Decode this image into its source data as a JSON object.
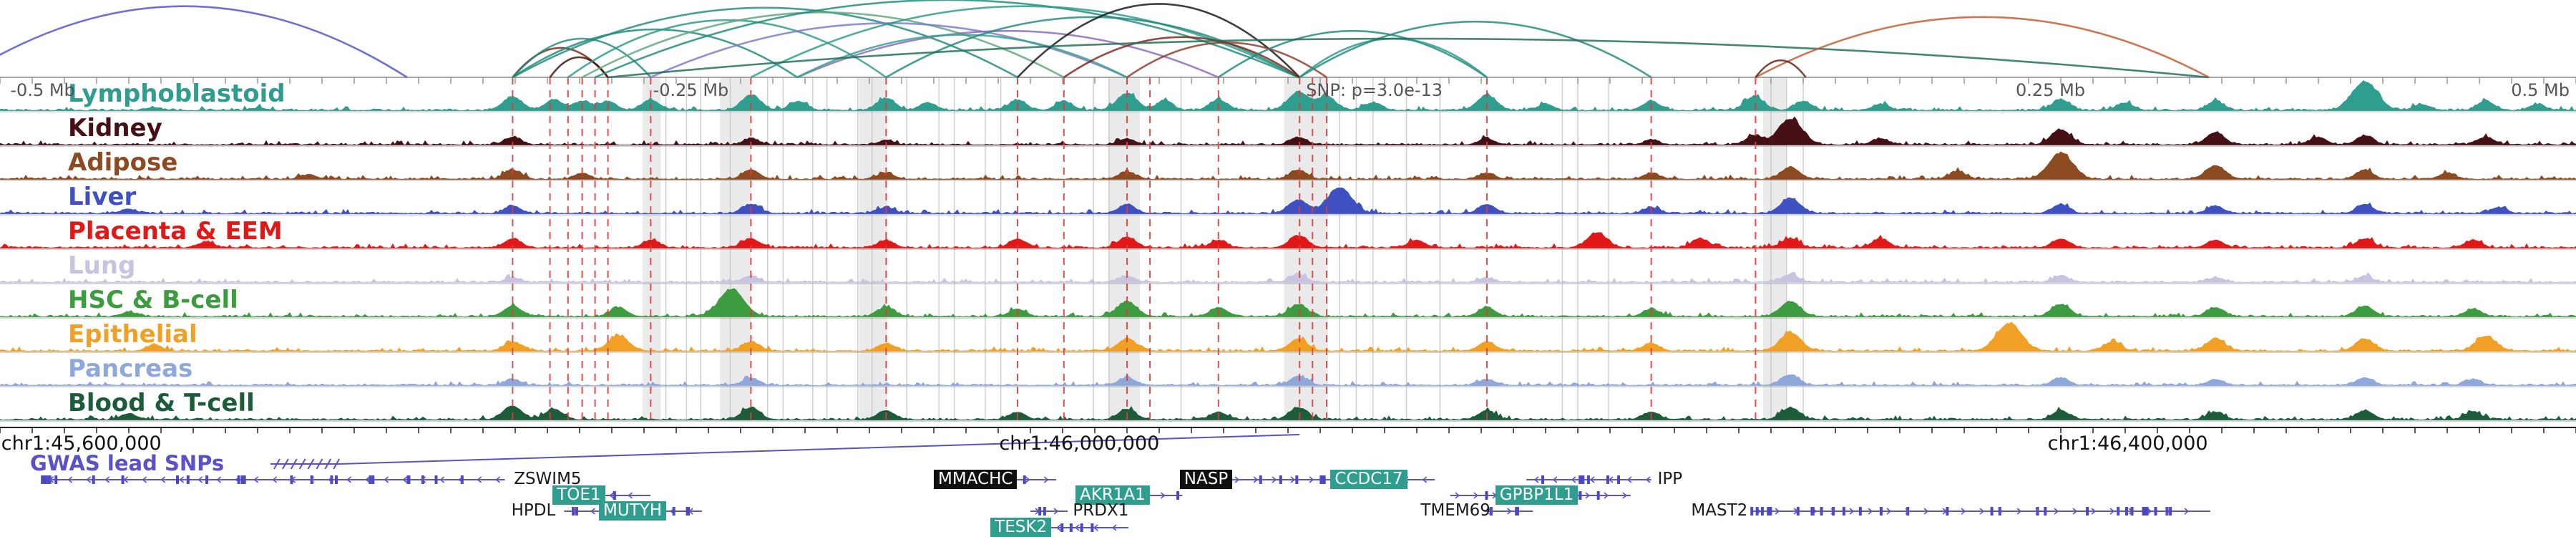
{
  "chart_data": {
    "type": "area",
    "subtype": "genome-browser-locus-view",
    "title": "",
    "ruler_labels": [
      {
        "text": "-0.5 Mb",
        "x": 0.004,
        "anchor": "start"
      },
      {
        "text": "-0.25 Mb",
        "x": 0.2535,
        "anchor": "start"
      },
      {
        "text": "SNP: p=3.0e-13",
        "x": 0.507,
        "anchor": "start"
      },
      {
        "text": "0.25 Mb",
        "x": 0.7825,
        "anchor": "start"
      },
      {
        "text": "0.5 Mb",
        "x": 0.9975,
        "anchor": "end"
      }
    ],
    "axis_labels": [
      {
        "text": "chr1:45,600,000",
        "x": 0.0005,
        "anchor": "start"
      },
      {
        "text": "chr1:46,000,000",
        "x": 0.419,
        "anchor": "middle"
      },
      {
        "text": "chr1:46,400,000",
        "x": 0.826,
        "anchor": "middle"
      }
    ],
    "snp": {
      "label": "SNP: p=3.0e-13",
      "x": 0.5045
    },
    "gwas": {
      "label": "GWAS lead SNPs"
    },
    "tracks": [
      {
        "label": "Lymphoblastoid",
        "color": "#2f9e8f",
        "peaks": [
          [
            0.06,
            0.1
          ],
          [
            0.1,
            0.08
          ],
          [
            0.199,
            0.45
          ],
          [
            0.215,
            0.35
          ],
          [
            0.226,
            0.3
          ],
          [
            0.236,
            0.3
          ],
          [
            0.2526,
            0.35
          ],
          [
            0.2915,
            0.5
          ],
          [
            0.31,
            0.3
          ],
          [
            0.344,
            0.4
          ],
          [
            0.36,
            0.25
          ],
          [
            0.395,
            0.35
          ],
          [
            0.413,
            0.3
          ],
          [
            0.4375,
            0.55
          ],
          [
            0.452,
            0.3
          ],
          [
            0.473,
            0.35
          ],
          [
            0.504,
            0.6
          ],
          [
            0.515,
            0.45
          ],
          [
            0.533,
            0.25
          ],
          [
            0.5772,
            0.5
          ],
          [
            0.6,
            0.2
          ],
          [
            0.641,
            0.3
          ],
          [
            0.681,
            0.45
          ],
          [
            0.7,
            0.3
          ],
          [
            0.73,
            0.2
          ],
          [
            0.8,
            0.35
          ],
          [
            0.825,
            0.25
          ],
          [
            0.86,
            0.3
          ],
          [
            0.918,
            0.95
          ],
          [
            0.94,
            0.2
          ],
          [
            0.965,
            0.3
          ],
          [
            0.985,
            0.2
          ]
        ]
      },
      {
        "label": "Kidney",
        "color": "#451016",
        "peaks": [
          [
            0.199,
            0.25
          ],
          [
            0.2915,
            0.2
          ],
          [
            0.344,
            0.15
          ],
          [
            0.4375,
            0.2
          ],
          [
            0.504,
            0.25
          ],
          [
            0.5772,
            0.2
          ],
          [
            0.641,
            0.15
          ],
          [
            0.681,
            0.3
          ],
          [
            0.695,
            0.85
          ],
          [
            0.73,
            0.2
          ],
          [
            0.8,
            0.5
          ],
          [
            0.86,
            0.4
          ],
          [
            0.9,
            0.25
          ],
          [
            0.918,
            0.3
          ],
          [
            0.965,
            0.25
          ]
        ]
      },
      {
        "label": "Adipose",
        "color": "#8b4a20",
        "peaks": [
          [
            0.12,
            0.15
          ],
          [
            0.199,
            0.3
          ],
          [
            0.226,
            0.2
          ],
          [
            0.2915,
            0.3
          ],
          [
            0.344,
            0.2
          ],
          [
            0.4375,
            0.25
          ],
          [
            0.504,
            0.3
          ],
          [
            0.5772,
            0.2
          ],
          [
            0.641,
            0.2
          ],
          [
            0.695,
            0.4
          ],
          [
            0.76,
            0.25
          ],
          [
            0.8,
            0.85
          ],
          [
            0.86,
            0.45
          ],
          [
            0.918,
            0.3
          ],
          [
            0.95,
            0.2
          ]
        ]
      },
      {
        "label": "Liver",
        "color": "#3f51c1",
        "peaks": [
          [
            0.05,
            0.15
          ],
          [
            0.199,
            0.25
          ],
          [
            0.2915,
            0.3
          ],
          [
            0.344,
            0.2
          ],
          [
            0.4375,
            0.3
          ],
          [
            0.504,
            0.45
          ],
          [
            0.52,
            0.85
          ],
          [
            0.5772,
            0.3
          ],
          [
            0.641,
            0.2
          ],
          [
            0.695,
            0.5
          ],
          [
            0.8,
            0.3
          ],
          [
            0.86,
            0.25
          ],
          [
            0.918,
            0.3
          ],
          [
            0.97,
            0.2
          ]
        ]
      },
      {
        "label": "Placenta & EEM",
        "color": "#e01818",
        "peaks": [
          [
            0.08,
            0.2
          ],
          [
            0.199,
            0.3
          ],
          [
            0.2526,
            0.25
          ],
          [
            0.2915,
            0.3
          ],
          [
            0.344,
            0.25
          ],
          [
            0.395,
            0.3
          ],
          [
            0.4375,
            0.35
          ],
          [
            0.473,
            0.25
          ],
          [
            0.504,
            0.4
          ],
          [
            0.55,
            0.25
          ],
          [
            0.62,
            0.5
          ],
          [
            0.66,
            0.3
          ],
          [
            0.695,
            0.3
          ],
          [
            0.73,
            0.3
          ],
          [
            0.8,
            0.3
          ],
          [
            0.86,
            0.25
          ],
          [
            0.918,
            0.3
          ],
          [
            0.96,
            0.25
          ]
        ]
      },
      {
        "label": "Lung",
        "color": "#c9c3e2",
        "peaks": [
          [
            0.199,
            0.15
          ],
          [
            0.2915,
            0.2
          ],
          [
            0.4375,
            0.2
          ],
          [
            0.504,
            0.25
          ],
          [
            0.5772,
            0.15
          ],
          [
            0.695,
            0.25
          ],
          [
            0.8,
            0.2
          ],
          [
            0.86,
            0.15
          ],
          [
            0.918,
            0.2
          ]
        ]
      },
      {
        "label": "HSC & B-cell",
        "color": "#3d9b40",
        "peaks": [
          [
            0.05,
            0.15
          ],
          [
            0.199,
            0.35
          ],
          [
            0.24,
            0.3
          ],
          [
            0.284,
            0.9
          ],
          [
            0.344,
            0.3
          ],
          [
            0.395,
            0.25
          ],
          [
            0.4375,
            0.5
          ],
          [
            0.473,
            0.3
          ],
          [
            0.504,
            0.4
          ],
          [
            0.5772,
            0.3
          ],
          [
            0.641,
            0.25
          ],
          [
            0.695,
            0.5
          ],
          [
            0.8,
            0.4
          ],
          [
            0.86,
            0.3
          ],
          [
            0.918,
            0.35
          ],
          [
            0.96,
            0.25
          ]
        ]
      },
      {
        "label": "Epithelial",
        "color": "#f0a125",
        "peaks": [
          [
            0.06,
            0.2
          ],
          [
            0.199,
            0.3
          ],
          [
            0.24,
            0.5
          ],
          [
            0.2915,
            0.3
          ],
          [
            0.344,
            0.25
          ],
          [
            0.4375,
            0.4
          ],
          [
            0.504,
            0.4
          ],
          [
            0.5772,
            0.3
          ],
          [
            0.641,
            0.25
          ],
          [
            0.695,
            0.6
          ],
          [
            0.78,
            0.9
          ],
          [
            0.82,
            0.3
          ],
          [
            0.86,
            0.4
          ],
          [
            0.918,
            0.4
          ],
          [
            0.965,
            0.5
          ]
        ]
      },
      {
        "label": "Pancreas",
        "color": "#8fa8dc",
        "peaks": [
          [
            0.199,
            0.2
          ],
          [
            0.2915,
            0.25
          ],
          [
            0.4375,
            0.25
          ],
          [
            0.504,
            0.3
          ],
          [
            0.5772,
            0.2
          ],
          [
            0.695,
            0.35
          ],
          [
            0.8,
            0.25
          ],
          [
            0.86,
            0.2
          ],
          [
            0.918,
            0.25
          ],
          [
            0.96,
            0.2
          ]
        ]
      },
      {
        "label": "Blood & T-cell",
        "color": "#1c5c3a",
        "peaks": [
          [
            0.05,
            0.2
          ],
          [
            0.199,
            0.45
          ],
          [
            0.215,
            0.35
          ],
          [
            0.2915,
            0.4
          ],
          [
            0.344,
            0.3
          ],
          [
            0.395,
            0.25
          ],
          [
            0.4375,
            0.35
          ],
          [
            0.473,
            0.25
          ],
          [
            0.504,
            0.4
          ],
          [
            0.5772,
            0.3
          ],
          [
            0.641,
            0.25
          ],
          [
            0.695,
            0.4
          ],
          [
            0.8,
            0.3
          ],
          [
            0.86,
            0.25
          ],
          [
            0.918,
            0.3
          ],
          [
            0.96,
            0.25
          ]
        ]
      }
    ],
    "arcs": [
      {
        "x1": -0.015,
        "x2": 0.158,
        "c": "#5150c8",
        "h": 0.92
      },
      {
        "x1": 0.199,
        "x2": 0.236,
        "c": "#7a2418",
        "h": 0.38
      },
      {
        "x1": 0.199,
        "x2": 0.2526,
        "c": "#20897b",
        "h": 0.5
      },
      {
        "x1": 0.2135,
        "x2": 0.236,
        "c": "#3c1408",
        "h": 0.26
      },
      {
        "x1": 0.199,
        "x2": 0.3095,
        "c": "#20897b",
        "h": 0.62
      },
      {
        "x1": 0.2205,
        "x2": 0.344,
        "c": "#2b9a89",
        "h": 0.74
      },
      {
        "x1": 0.199,
        "x2": 0.395,
        "c": "#20897b",
        "h": 0.9
      },
      {
        "x1": 0.226,
        "x2": 0.413,
        "c": "#5fa57c",
        "h": 0.84
      },
      {
        "x1": 0.231,
        "x2": 0.504,
        "c": "#1d8a7a",
        "h": 1.0
      },
      {
        "x1": 0.2526,
        "x2": 0.4375,
        "c": "#7a79ca",
        "h": 0.7
      },
      {
        "x1": 0.2915,
        "x2": 0.504,
        "c": "#2b9a89",
        "h": 0.92
      },
      {
        "x1": 0.3095,
        "x2": 0.473,
        "c": "#8a68ba",
        "h": 0.6
      },
      {
        "x1": 0.3095,
        "x2": 0.4375,
        "c": "#32a18e",
        "h": 0.55
      },
      {
        "x1": 0.344,
        "x2": 0.504,
        "c": "#20897b",
        "h": 0.78
      },
      {
        "x1": 0.395,
        "x2": 0.5045,
        "c": "#151515",
        "h": 0.95
      },
      {
        "x1": 0.413,
        "x2": 0.5045,
        "c": "#7a2418",
        "h": 0.52
      },
      {
        "x1": 0.4375,
        "x2": 0.515,
        "c": "#8c3a28",
        "h": 0.45
      },
      {
        "x1": 0.473,
        "x2": 0.5772,
        "c": "#20897b",
        "h": 0.6
      },
      {
        "x1": 0.5045,
        "x2": 0.5772,
        "c": "#2b9a89",
        "h": 0.5
      },
      {
        "x1": 0.5045,
        "x2": 0.641,
        "c": "#20897b",
        "h": 0.72
      },
      {
        "x1": 0.236,
        "x2": 0.8575,
        "c": "#1d6b56",
        "h": 0.5
      },
      {
        "x1": 0.6815,
        "x2": 0.8575,
        "c": "#c05a2e",
        "h": 0.78
      },
      {
        "x1": 0.6815,
        "x2": 0.701,
        "c": "#5e1f12",
        "h": 0.22
      }
    ],
    "red_lines": [
      0.199,
      0.2135,
      0.2205,
      0.226,
      0.231,
      0.236,
      0.2526,
      0.2915,
      0.344,
      0.395,
      0.413,
      0.4375,
      0.4464,
      0.473,
      0.5045,
      0.5095,
      0.515,
      0.5772,
      0.641,
      0.6815
    ],
    "gray_lines": [
      0.2585,
      0.2665,
      0.272,
      0.2835,
      0.298,
      0.304,
      0.3155,
      0.321,
      0.333,
      0.3385,
      0.352,
      0.3645,
      0.3705,
      0.3825,
      0.3885,
      0.4245,
      0.4305,
      0.4585,
      0.52,
      0.5265,
      0.533,
      0.546,
      0.559,
      0.6065,
      0.6125,
      0.6245,
      0.6875,
      0.6935,
      0.7
    ],
    "bands": [
      [
        0.2495,
        0.007
      ],
      [
        0.2795,
        0.012
      ],
      [
        0.3335,
        0.011
      ],
      [
        0.4305,
        0.012
      ],
      [
        0.4985,
        0.017
      ],
      [
        0.6845,
        0.009
      ]
    ],
    "genes": [
      {
        "label": "ZSWIM5",
        "row": 0,
        "x1": 0.016,
        "x2": 0.196,
        "dir": "L",
        "label_x": 0.1995,
        "style": "plain",
        "dense": "start"
      },
      {
        "label": "MMACHC",
        "row": 0,
        "x1": 0.389,
        "x2": 0.41,
        "dir": "R",
        "label_x": 0.3625,
        "style": "dark"
      },
      {
        "label": "NASP",
        "row": 0,
        "x1": 0.4775,
        "x2": 0.513,
        "dir": "R",
        "label_x": 0.458,
        "style": "dark"
      },
      {
        "label": "CCDC17",
        "row": 0,
        "x1": 0.513,
        "x2": 0.557,
        "dir": "L",
        "label_x": 0.5165,
        "style": "teal"
      },
      {
        "label": "IPP",
        "row": 0,
        "x1": 0.5925,
        "x2": 0.641,
        "dir": "L",
        "label_x": 0.6435,
        "style": "plain"
      },
      {
        "label": "TOE1",
        "row": 1,
        "x1": 0.2335,
        "x2": 0.2525,
        "dir": "L",
        "label_x": 0.2145,
        "style": "teal"
      },
      {
        "label": "AKR1A1",
        "row": 1,
        "x1": 0.4415,
        "x2": 0.459,
        "dir": "R",
        "label_x": 0.4175,
        "style": "teal"
      },
      {
        "label": "GPBP1L1",
        "row": 1,
        "x1": 0.563,
        "x2": 0.633,
        "dir": "R",
        "label_x": 0.5805,
        "style": "teal"
      },
      {
        "label": "HPDL",
        "row": 2,
        "x1": 0.219,
        "x2": 0.2325,
        "dir": "L",
        "label_x": 0.1985,
        "style": "plain"
      },
      {
        "label": "MUTYH",
        "row": 2,
        "x1": 0.257,
        "x2": 0.2725,
        "dir": "L",
        "label_x": 0.2325,
        "style": "teal"
      },
      {
        "label": "PRDX1",
        "row": 2,
        "x1": 0.4,
        "x2": 0.4145,
        "dir": "R",
        "label_x": 0.4165,
        "style": "plain"
      },
      {
        "label": "TMEM69",
        "row": 2,
        "x1": 0.576,
        "x2": 0.595,
        "dir": "R",
        "label_x": 0.5515,
        "style": "plain"
      },
      {
        "label": "MAST2",
        "row": 2,
        "x1": 0.68,
        "x2": 0.858,
        "dir": "R",
        "label_x": 0.6565,
        "style": "plain",
        "dense": "start"
      },
      {
        "label": "TESK2",
        "row": 3,
        "x1": 0.407,
        "x2": 0.438,
        "dir": "L",
        "label_x": 0.3845,
        "style": "teal"
      }
    ],
    "colors": {
      "red_line": "#e23a3a",
      "gray_line": "#c4c4c4",
      "band": "#d9d9d9",
      "separator": "#9a9a9a",
      "gene": "#5a55c8",
      "gene_exon": "#4d48bf",
      "gwas": "#5a50c8",
      "teal_bg": "#2f9e8f",
      "dark_bg": "#101010",
      "axis": "#222222",
      "ruler_text": "#555555"
    }
  }
}
